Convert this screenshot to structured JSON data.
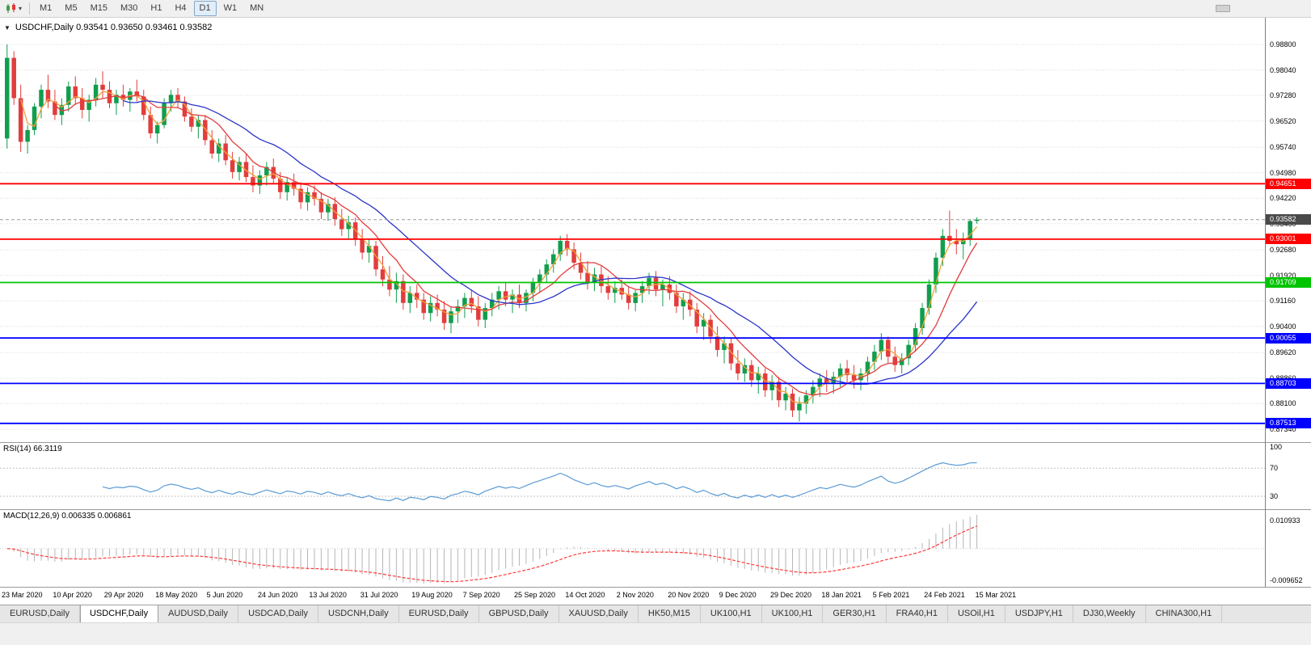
{
  "toolbar": {
    "icons": {
      "chart_tools_dropdown": "▾"
    },
    "timeframes": [
      {
        "label": "M1",
        "active": false
      },
      {
        "label": "M5",
        "active": false
      },
      {
        "label": "M15",
        "active": false
      },
      {
        "label": "M30",
        "active": false
      },
      {
        "label": "H1",
        "active": false
      },
      {
        "label": "H4",
        "active": false
      },
      {
        "label": "D1",
        "active": true
      },
      {
        "label": "W1",
        "active": false
      },
      {
        "label": "MN",
        "active": false
      }
    ]
  },
  "chart_data": {
    "type": "candlestick",
    "symbol": "USDCHF",
    "timeframe": "Daily",
    "collapse_icon": "▼",
    "title": "USDCHF,Daily 0.93541 0.93650 0.93461 0.93582",
    "last_ohlc": {
      "open": "0.93541",
      "high": "0.93650",
      "low": "0.93461",
      "close": "0.93582"
    },
    "up_color": "#119e4e",
    "down_color": "#e23d3d",
    "grid_color": "#dcdcdc",
    "y_axis_labels": [
      "0.98800",
      "0.98040",
      "0.97280",
      "0.96520",
      "0.95740",
      "0.94980",
      "0.94220",
      "0.93460",
      "0.92680",
      "0.91920",
      "0.91160",
      "0.90400",
      "0.89620",
      "0.88860",
      "0.88100",
      "0.87340"
    ],
    "x_axis_labels": [
      "23 Mar 2020",
      "10 Apr 2020",
      "29 Apr 2020",
      "18 May 2020",
      "5 Jun 2020",
      "24 Jun 2020",
      "13 Jul 2020",
      "31 Jul 2020",
      "19 Aug 2020",
      "7 Sep 2020",
      "25 Sep 2020",
      "14 Oct 2020",
      "2 Nov 2020",
      "20 Nov 2020",
      "9 Dec 2020",
      "29 Dec 2020",
      "18 Jan 2021",
      "5 Feb 2021",
      "24 Feb 2021",
      "15 Mar 2021"
    ],
    "horizontal_lines": [
      {
        "value": 0.94651,
        "label": "0.94651",
        "color": "#ff0000"
      },
      {
        "value": 0.93001,
        "label": "0.93001",
        "color": "#ff0000"
      },
      {
        "value": 0.91709,
        "label": "0.91709",
        "color": "#00c400"
      },
      {
        "value": 0.90055,
        "label": "0.90055",
        "color": "#0000ff"
      },
      {
        "value": 0.88703,
        "label": "0.88703",
        "color": "#0000ff"
      },
      {
        "value": 0.87513,
        "label": "0.87513",
        "color": "#0000ff"
      }
    ],
    "current_price": {
      "value": 0.93582,
      "label": "0.93582",
      "tag_color": "#4a4a4a"
    },
    "moving_averages": [
      {
        "period": 3,
        "color": "#f0a23c"
      },
      {
        "period": 8,
        "color": "#e23d3d"
      },
      {
        "period": 18,
        "color": "#2b34c8"
      }
    ],
    "candles": [
      [
        0.96,
        0.988,
        0.957,
        0.984
      ],
      [
        0.984,
        0.986,
        0.97,
        0.972
      ],
      [
        0.972,
        0.976,
        0.956,
        0.959
      ],
      [
        0.959,
        0.964,
        0.9555,
        0.9625
      ],
      [
        0.9625,
        0.9705,
        0.961,
        0.9695
      ],
      [
        0.9695,
        0.976,
        0.966,
        0.9745
      ],
      [
        0.9745,
        0.979,
        0.969,
        0.971
      ],
      [
        0.971,
        0.9745,
        0.9655,
        0.967
      ],
      [
        0.967,
        0.972,
        0.964,
        0.97
      ],
      [
        0.97,
        0.977,
        0.968,
        0.9755
      ],
      [
        0.9755,
        0.9785,
        0.97,
        0.972
      ],
      [
        0.972,
        0.975,
        0.966,
        0.9685
      ],
      [
        0.9685,
        0.973,
        0.965,
        0.9715
      ],
      [
        0.9715,
        0.978,
        0.9695,
        0.976
      ],
      [
        0.976,
        0.98,
        0.972,
        0.9745
      ],
      [
        0.9745,
        0.977,
        0.969,
        0.9705
      ],
      [
        0.9705,
        0.9745,
        0.967,
        0.973
      ],
      [
        0.973,
        0.976,
        0.9695,
        0.9715
      ],
      [
        0.9715,
        0.975,
        0.968,
        0.974
      ],
      [
        0.974,
        0.9775,
        0.971,
        0.9725
      ],
      [
        0.9725,
        0.9745,
        0.9655,
        0.967
      ],
      [
        0.967,
        0.9695,
        0.96,
        0.9615
      ],
      [
        0.9615,
        0.965,
        0.9585,
        0.964
      ],
      [
        0.964,
        0.972,
        0.963,
        0.9705
      ],
      [
        0.9705,
        0.9745,
        0.968,
        0.973
      ],
      [
        0.973,
        0.975,
        0.969,
        0.971
      ],
      [
        0.971,
        0.9725,
        0.965,
        0.9665
      ],
      [
        0.9665,
        0.969,
        0.962,
        0.9635
      ],
      [
        0.9635,
        0.967,
        0.96,
        0.9655
      ],
      [
        0.9655,
        0.967,
        0.958,
        0.9595
      ],
      [
        0.9595,
        0.9625,
        0.954,
        0.9555
      ],
      [
        0.9555,
        0.96,
        0.953,
        0.9585
      ],
      [
        0.9585,
        0.961,
        0.952,
        0.9535
      ],
      [
        0.9535,
        0.956,
        0.948,
        0.95
      ],
      [
        0.95,
        0.9545,
        0.9475,
        0.953
      ],
      [
        0.953,
        0.9555,
        0.947,
        0.9485
      ],
      [
        0.9485,
        0.952,
        0.944,
        0.946
      ],
      [
        0.946,
        0.9505,
        0.9435,
        0.949
      ],
      [
        0.949,
        0.953,
        0.946,
        0.9515
      ],
      [
        0.9515,
        0.954,
        0.9465,
        0.948
      ],
      [
        0.948,
        0.95,
        0.942,
        0.944
      ],
      [
        0.944,
        0.9485,
        0.9415,
        0.947
      ],
      [
        0.947,
        0.9495,
        0.943,
        0.945
      ],
      [
        0.945,
        0.947,
        0.939,
        0.941
      ],
      [
        0.941,
        0.9455,
        0.9385,
        0.944
      ],
      [
        0.944,
        0.946,
        0.94,
        0.942
      ],
      [
        0.942,
        0.944,
        0.936,
        0.938
      ],
      [
        0.938,
        0.942,
        0.9355,
        0.9405
      ],
      [
        0.9405,
        0.9425,
        0.934,
        0.936
      ],
      [
        0.936,
        0.939,
        0.931,
        0.933
      ],
      [
        0.933,
        0.937,
        0.93,
        0.935
      ],
      [
        0.935,
        0.9365,
        0.928,
        0.93
      ],
      [
        0.93,
        0.933,
        0.924,
        0.926
      ],
      [
        0.926,
        0.93,
        0.923,
        0.928
      ],
      [
        0.928,
        0.9295,
        0.919,
        0.921
      ],
      [
        0.921,
        0.925,
        0.916,
        0.918
      ],
      [
        0.918,
        0.922,
        0.913,
        0.915
      ],
      [
        0.915,
        0.92,
        0.911,
        0.9175
      ],
      [
        0.9175,
        0.9195,
        0.909,
        0.911
      ],
      [
        0.911,
        0.916,
        0.908,
        0.914
      ],
      [
        0.914,
        0.9165,
        0.9095,
        0.912
      ],
      [
        0.912,
        0.914,
        0.906,
        0.908
      ],
      [
        0.908,
        0.913,
        0.9055,
        0.911
      ],
      [
        0.911,
        0.9135,
        0.907,
        0.909
      ],
      [
        0.909,
        0.9115,
        0.903,
        0.905
      ],
      [
        0.905,
        0.91,
        0.902,
        0.9085
      ],
      [
        0.9085,
        0.912,
        0.905,
        0.91
      ],
      [
        0.91,
        0.914,
        0.9065,
        0.9125
      ],
      [
        0.9125,
        0.915,
        0.908,
        0.91
      ],
      [
        0.91,
        0.913,
        0.904,
        0.906
      ],
      [
        0.906,
        0.911,
        0.9035,
        0.9095
      ],
      [
        0.9095,
        0.914,
        0.907,
        0.912
      ],
      [
        0.912,
        0.916,
        0.909,
        0.9145
      ],
      [
        0.9145,
        0.917,
        0.91,
        0.912
      ],
      [
        0.912,
        0.915,
        0.908,
        0.9135
      ],
      [
        0.9135,
        0.9165,
        0.9095,
        0.911
      ],
      [
        0.911,
        0.915,
        0.9085,
        0.914
      ],
      [
        0.914,
        0.9185,
        0.9115,
        0.917
      ],
      [
        0.917,
        0.921,
        0.914,
        0.9195
      ],
      [
        0.9195,
        0.924,
        0.917,
        0.9225
      ],
      [
        0.9225,
        0.927,
        0.92,
        0.9255
      ],
      [
        0.9255,
        0.931,
        0.9235,
        0.9295
      ],
      [
        0.9295,
        0.9315,
        0.925,
        0.927
      ],
      [
        0.927,
        0.929,
        0.921,
        0.923
      ],
      [
        0.923,
        0.926,
        0.918,
        0.92
      ],
      [
        0.92,
        0.9235,
        0.915,
        0.917
      ],
      [
        0.917,
        0.9215,
        0.9145,
        0.9195
      ],
      [
        0.9195,
        0.922,
        0.914,
        0.916
      ],
      [
        0.916,
        0.919,
        0.912,
        0.914
      ],
      [
        0.914,
        0.9175,
        0.911,
        0.9155
      ],
      [
        0.9155,
        0.918,
        0.912,
        0.9135
      ],
      [
        0.9135,
        0.916,
        0.909,
        0.911
      ],
      [
        0.911,
        0.915,
        0.9085,
        0.914
      ],
      [
        0.914,
        0.9175,
        0.911,
        0.916
      ],
      [
        0.916,
        0.92,
        0.9135,
        0.9185
      ],
      [
        0.9185,
        0.9205,
        0.913,
        0.915
      ],
      [
        0.915,
        0.918,
        0.91,
        0.9165
      ],
      [
        0.9165,
        0.919,
        0.912,
        0.914
      ],
      [
        0.914,
        0.9165,
        0.908,
        0.91
      ],
      [
        0.91,
        0.914,
        0.906,
        0.912
      ],
      [
        0.912,
        0.9145,
        0.907,
        0.909
      ],
      [
        0.909,
        0.911,
        0.902,
        0.904
      ],
      [
        0.904,
        0.908,
        0.9,
        0.906
      ],
      [
        0.906,
        0.9075,
        0.899,
        0.901
      ],
      [
        0.901,
        0.904,
        0.895,
        0.897
      ],
      [
        0.897,
        0.901,
        0.893,
        0.899
      ],
      [
        0.899,
        0.9005,
        0.891,
        0.893
      ],
      [
        0.893,
        0.897,
        0.888,
        0.89
      ],
      [
        0.89,
        0.8945,
        0.8875,
        0.8925
      ],
      [
        0.8925,
        0.894,
        0.886,
        0.888
      ],
      [
        0.888,
        0.892,
        0.884,
        0.89
      ],
      [
        0.89,
        0.8915,
        0.883,
        0.885
      ],
      [
        0.885,
        0.8895,
        0.882,
        0.8875
      ],
      [
        0.8875,
        0.889,
        0.88,
        0.882
      ],
      [
        0.882,
        0.886,
        0.879,
        0.884
      ],
      [
        0.884,
        0.8855,
        0.877,
        0.879
      ],
      [
        0.879,
        0.883,
        0.8757,
        0.881
      ],
      [
        0.881,
        0.885,
        0.878,
        0.8835
      ],
      [
        0.8835,
        0.888,
        0.881,
        0.886
      ],
      [
        0.886,
        0.89,
        0.883,
        0.8885
      ],
      [
        0.8885,
        0.891,
        0.8845,
        0.887
      ],
      [
        0.887,
        0.8905,
        0.884,
        0.889
      ],
      [
        0.889,
        0.893,
        0.886,
        0.8915
      ],
      [
        0.8915,
        0.894,
        0.887,
        0.8895
      ],
      [
        0.8895,
        0.8925,
        0.8855,
        0.888
      ],
      [
        0.888,
        0.8915,
        0.885,
        0.89
      ],
      [
        0.89,
        0.895,
        0.8875,
        0.8935
      ],
      [
        0.8935,
        0.8985,
        0.891,
        0.8965
      ],
      [
        0.8965,
        0.902,
        0.894,
        0.9
      ],
      [
        0.9,
        0.901,
        0.893,
        0.895
      ],
      [
        0.895,
        0.898,
        0.8905,
        0.8925
      ],
      [
        0.8925,
        0.896,
        0.89,
        0.8945
      ],
      [
        0.8945,
        0.9,
        0.8925,
        0.8985
      ],
      [
        0.8985,
        0.905,
        0.8965,
        0.9035
      ],
      [
        0.9035,
        0.911,
        0.9015,
        0.9095
      ],
      [
        0.9095,
        0.918,
        0.9075,
        0.9165
      ],
      [
        0.9165,
        0.926,
        0.914,
        0.9245
      ],
      [
        0.9245,
        0.933,
        0.922,
        0.931
      ],
      [
        0.931,
        0.9385,
        0.928,
        0.9295
      ],
      [
        0.9295,
        0.933,
        0.9255,
        0.9285
      ],
      [
        0.9285,
        0.932,
        0.924,
        0.93
      ],
      [
        0.93,
        0.936,
        0.928,
        0.9354
      ],
      [
        0.93541,
        0.9365,
        0.93461,
        0.93582
      ]
    ],
    "indicators": {
      "rsi": {
        "label": "RSI(14) 66.3119",
        "period": 14,
        "current": "66.3119",
        "axis_labels": [
          "100",
          "70",
          "30"
        ],
        "axis_values": [
          100,
          70,
          30
        ],
        "level_lines": [
          70,
          30
        ],
        "line_color": "#5b9bd5"
      },
      "macd": {
        "label": "MACD(12,26,9) 0.006335 0.006861",
        "fast": 12,
        "slow": 26,
        "signal": 9,
        "axis_max_label": "0.010933",
        "axis_min_label": "-0.009652",
        "histogram_color": "#b6b6b6",
        "signal_color": "#ff3b3b"
      }
    }
  },
  "tabs": [
    {
      "label": "EURUSD,Daily",
      "active": false
    },
    {
      "label": "USDCHF,Daily",
      "active": true
    },
    {
      "label": "AUDUSD,Daily",
      "active": false
    },
    {
      "label": "USDCAD,Daily",
      "active": false
    },
    {
      "label": "USDCNH,Daily",
      "active": false
    },
    {
      "label": "EURUSD,Daily",
      "active": false
    },
    {
      "label": "GBPUSD,Daily",
      "active": false
    },
    {
      "label": "XAUUSD,Daily",
      "active": false
    },
    {
      "label": "HK50,M15",
      "active": false
    },
    {
      "label": "UK100,H1",
      "active": false
    },
    {
      "label": "UK100,H1",
      "active": false
    },
    {
      "label": "GER30,H1",
      "active": false
    },
    {
      "label": "FRA40,H1",
      "active": false
    },
    {
      "label": "USOil,H1",
      "active": false
    },
    {
      "label": "USDJPY,H1",
      "active": false
    },
    {
      "label": "DJ30,Weekly",
      "active": false
    },
    {
      "label": "CHINA300,H1",
      "active": false
    }
  ]
}
